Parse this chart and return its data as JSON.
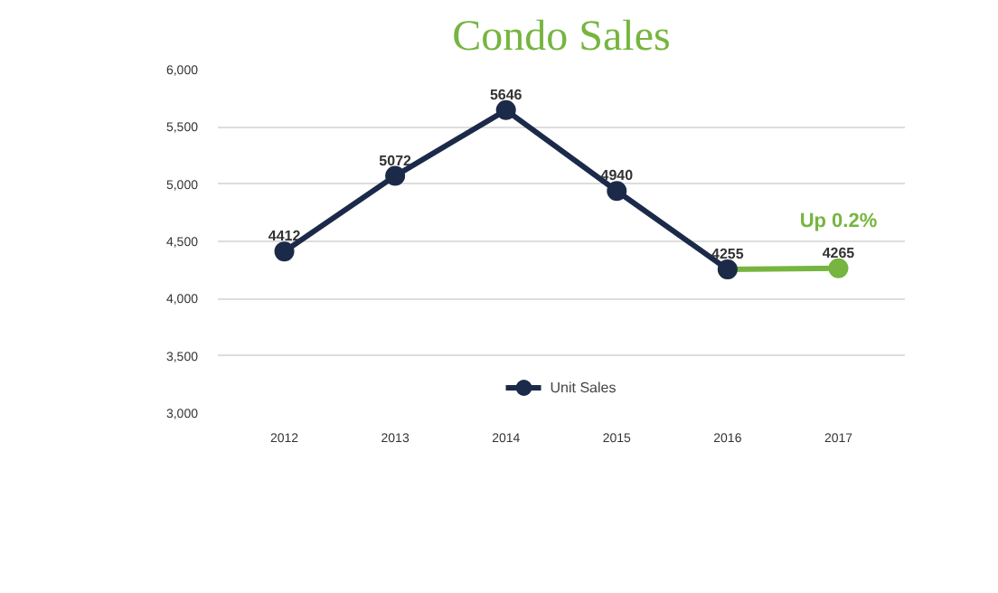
{
  "chart_data": {
    "type": "line",
    "title": "Condo Sales",
    "categories": [
      "2012",
      "2013",
      "2014",
      "2015",
      "2016",
      "2017"
    ],
    "series": [
      {
        "name": "Unit Sales",
        "color": "#1c2a4a",
        "values": [
          4412,
          5072,
          5646,
          4940,
          4255,
          null
        ],
        "value_labels": [
          "4412",
          "5072",
          "5646",
          "4940",
          "4255",
          null
        ]
      },
      {
        "color": "#76b53f",
        "values": [
          null,
          null,
          null,
          null,
          4255,
          4265
        ],
        "value_labels": [
          null,
          null,
          null,
          null,
          null,
          "4265"
        ]
      }
    ],
    "ylim": [
      3000,
      6000
    ],
    "yticks": [
      {
        "value": 3000,
        "label": "3,000"
      },
      {
        "value": 3500,
        "label": "3,500"
      },
      {
        "value": 4000,
        "label": "4,000"
      },
      {
        "value": 4500,
        "label": "4,500"
      },
      {
        "value": 5000,
        "label": "5,000"
      },
      {
        "value": 5500,
        "label": "5,500"
      },
      {
        "value": 6000,
        "label": "6,000"
      }
    ],
    "grid": "y",
    "legend": "bottom",
    "marker": "circle",
    "line_style": "solid",
    "annotations": [
      {
        "text": "Up 0.2%",
        "x": "2017",
        "y": 4265
      }
    ]
  }
}
